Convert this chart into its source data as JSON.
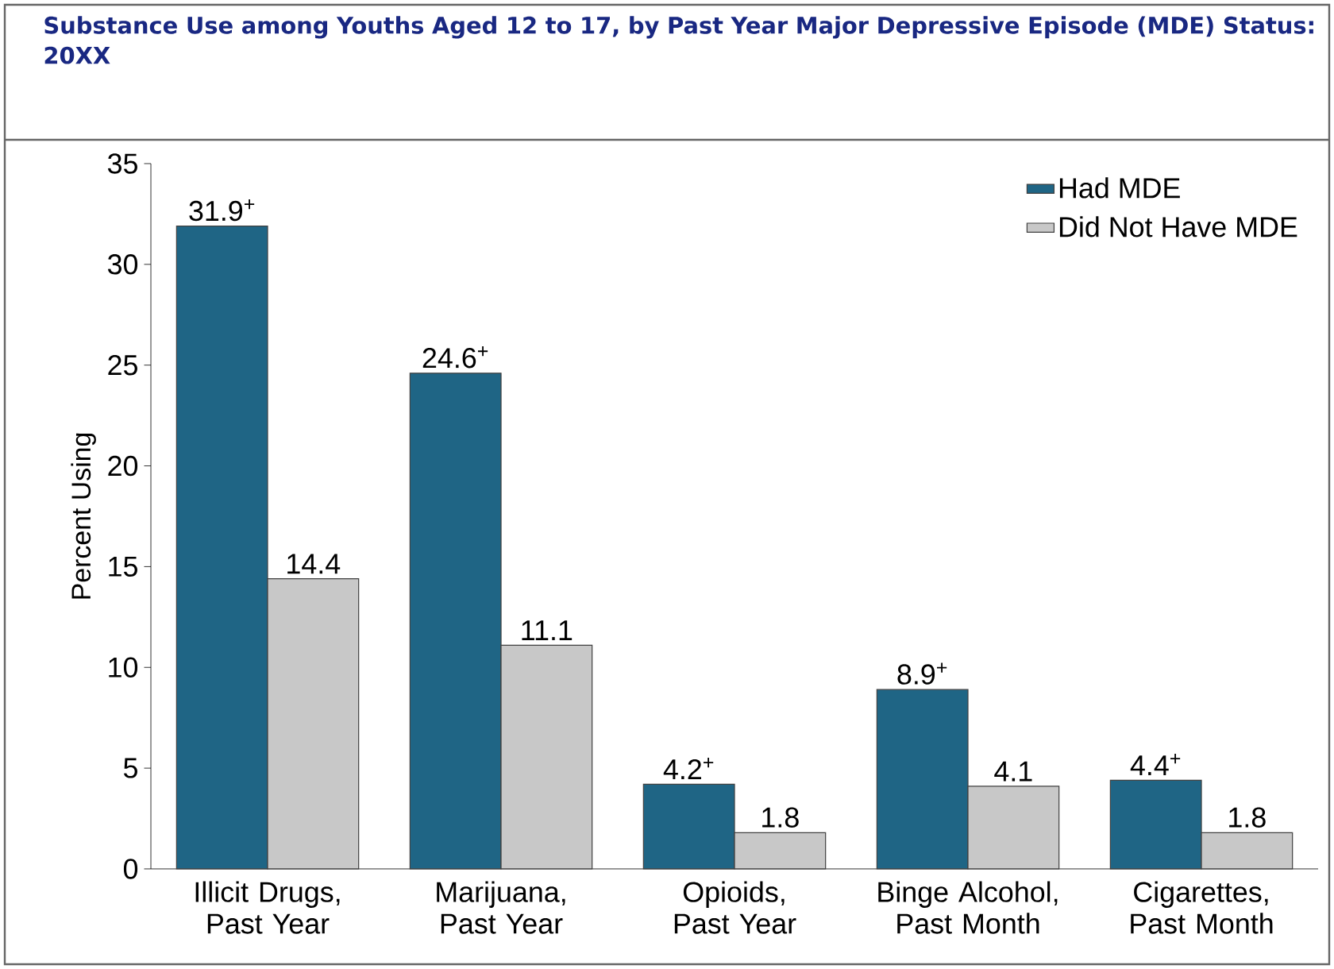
{
  "chart_data": {
    "type": "bar",
    "title": "Substance Use among Youths Aged 12 to 17, by Past Year Major Depressive Episode (MDE) Status: 20XX",
    "ylabel": "Percent Using",
    "categories": [
      "Illicit Drugs, Past Year",
      "Marijuana, Past Year",
      "Opioids, Past Year",
      "Binge Alcohol, Past Month",
      "Cigarettes, Past Month"
    ],
    "series": [
      {
        "name": "Had MDE",
        "color": "#1f6585",
        "values": [
          31.9,
          24.6,
          4.2,
          8.9,
          4.4
        ],
        "value_labels": [
          "31.9$^{+}$",
          "24.6$^{+}$",
          "4.2$^{+}$",
          "8.9$^{+}$",
          "4.4$^{+}$"
        ]
      },
      {
        "name": "Did Not Have MDE",
        "color": "#c8c8c8",
        "values": [
          14.4,
          11.1,
          1.8,
          4.1,
          1.8
        ],
        "value_labels": [
          "14.4",
          "11.1",
          "1.8",
          "4.1",
          "1.8"
        ]
      }
    ],
    "ylim": [
      0,
      35
    ],
    "yticks": [
      0,
      5,
      10,
      15,
      20,
      25,
      30,
      35
    ],
    "legend": "top right"
  }
}
